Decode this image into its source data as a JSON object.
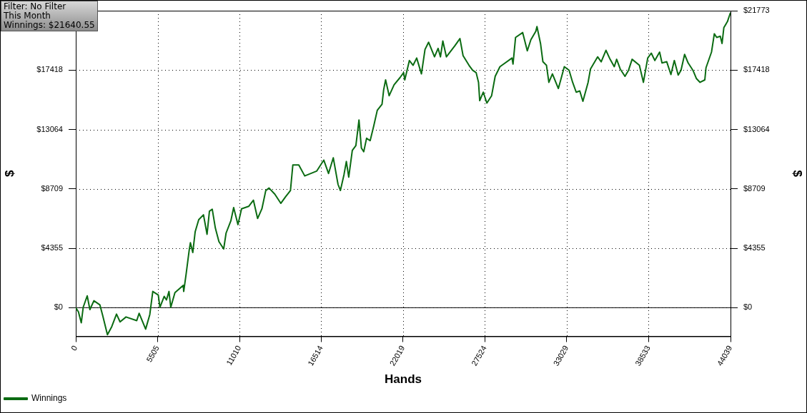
{
  "chart_data": {
    "type": "line",
    "xlabel": "Hands",
    "ylabel": "$",
    "y2label": "$",
    "annotations": [
      "Filter: No Filter",
      "This Month",
      "Winnings: $21640.55"
    ],
    "xlim": [
      0,
      44039
    ],
    "xticks": [
      0,
      5505,
      11010,
      16514,
      22019,
      27524,
      33029,
      38533,
      44039
    ],
    "ylim": [
      -2100,
      21773
    ],
    "yticks": [
      {
        "value": 0,
        "label": "$0"
      },
      {
        "value": 4355,
        "label": "$4355"
      },
      {
        "value": 8709,
        "label": "$8709"
      },
      {
        "value": 13064,
        "label": "$13064"
      },
      {
        "value": 17418,
        "label": "$17418"
      }
    ],
    "y2lim": [
      -2100,
      21773
    ],
    "y2ticks": [
      {
        "value": 0,
        "label": "$0"
      },
      {
        "value": 4355,
        "label": "$4355"
      },
      {
        "value": 8709,
        "label": "$8709"
      },
      {
        "value": 13064,
        "label": "$13064"
      },
      {
        "value": 17418,
        "label": "$17418"
      },
      {
        "value": 21773,
        "label": "$21773"
      }
    ],
    "grid": true,
    "legend": "bottom left",
    "marker": "none",
    "line_style": "solid",
    "ref_lines": [
      {
        "axis": "y",
        "value": 0,
        "color": "#000000",
        "line_style": "solid"
      }
    ],
    "series": [
      {
        "name": "Winnings",
        "color": "#0b6b12",
        "x": [
          0,
          180,
          370,
          500,
          770,
          950,
          1220,
          1620,
          1810,
          2130,
          2420,
          2740,
          2980,
          3380,
          4100,
          4260,
          4700,
          4980,
          5180,
          5550,
          5660,
          5950,
          6100,
          6270,
          6390,
          6670,
          7230,
          7260,
          7420,
          7630,
          7710,
          7870,
          8030,
          8270,
          8590,
          8830,
          8990,
          9180,
          9390,
          9630,
          9950,
          10110,
          10430,
          10620,
          10910,
          11150,
          11630,
          11950,
          12230,
          12520,
          12780,
          13000,
          13390,
          13790,
          14120,
          14440,
          14600,
          15000,
          15400,
          16200,
          16680,
          17000,
          17320,
          17640,
          17800,
          18040,
          18200,
          18360,
          18600,
          18840,
          19050,
          19210,
          19370,
          19560,
          19800,
          20040,
          20280,
          20600,
          20710,
          20840,
          21080,
          21410,
          21810,
          22050,
          22130,
          22440,
          22690,
          22930,
          23250,
          23490,
          23730,
          24130,
          24370,
          24530,
          24690,
          24930,
          25490,
          25840,
          26050,
          26450,
          26690,
          26930,
          27090,
          27170,
          27410,
          27650,
          27970,
          28210,
          28530,
          29340,
          29410,
          29580,
          30060,
          30370,
          30610,
          30940,
          31020,
          31260,
          31420,
          31660,
          31820,
          32060,
          32460,
          32620,
          32860,
          33180,
          33420,
          33660,
          33900,
          34110,
          34460,
          34620,
          34860,
          35100,
          35340,
          35660,
          35900,
          36220,
          36380,
          36620,
          36940,
          37180,
          37420,
          37910,
          38180,
          38470,
          38710,
          38950,
          39270,
          39430,
          39750,
          40030,
          40260,
          40520,
          40710,
          40950,
          41190,
          41510,
          41750,
          41990,
          42310,
          42390,
          42760,
          42950,
          43110,
          43350,
          43470,
          43590,
          43830,
          44039
        ],
        "values": [
          0,
          -310,
          -1110,
          30,
          870,
          -140,
          510,
          210,
          -570,
          -1980,
          -1390,
          -470,
          -1040,
          -680,
          -950,
          -410,
          -1570,
          -500,
          1190,
          930,
          30,
          830,
          570,
          1190,
          30,
          1100,
          1640,
          1190,
          2440,
          4220,
          4760,
          4040,
          5560,
          6450,
          6810,
          5380,
          7070,
          7220,
          5830,
          4840,
          4310,
          5470,
          6360,
          7340,
          6090,
          7250,
          7430,
          7880,
          6540,
          7250,
          8590,
          8770,
          8320,
          7650,
          8140,
          8590,
          10460,
          10460,
          9660,
          10010,
          10820,
          9840,
          10990,
          9040,
          8590,
          9750,
          10720,
          9570,
          11530,
          11880,
          13760,
          11710,
          11440,
          12420,
          12240,
          13310,
          14470,
          14920,
          15990,
          16700,
          15540,
          16340,
          16870,
          17230,
          16700,
          18120,
          17770,
          18300,
          17140,
          18930,
          19460,
          18390,
          19010,
          18390,
          19550,
          18390,
          19190,
          19730,
          18480,
          17770,
          17410,
          17230,
          16520,
          15180,
          15800,
          15000,
          15540,
          16960,
          17670,
          18300,
          17860,
          19810,
          20170,
          18830,
          19640,
          20260,
          20610,
          19370,
          18030,
          17770,
          16520,
          17140,
          16070,
          16700,
          17670,
          17410,
          16520,
          15800,
          15890,
          15130,
          16520,
          17500,
          17940,
          18390,
          18030,
          18870,
          18300,
          17670,
          18210,
          17500,
          16960,
          17410,
          18210,
          17770,
          16520,
          18300,
          18660,
          18120,
          18740,
          17940,
          18030,
          17090,
          18120,
          17050,
          17410,
          18570,
          17940,
          17410,
          16790,
          16520,
          16700,
          17590,
          18740,
          20080,
          19810,
          19900,
          19370,
          20530,
          20970,
          21640
        ]
      }
    ]
  }
}
